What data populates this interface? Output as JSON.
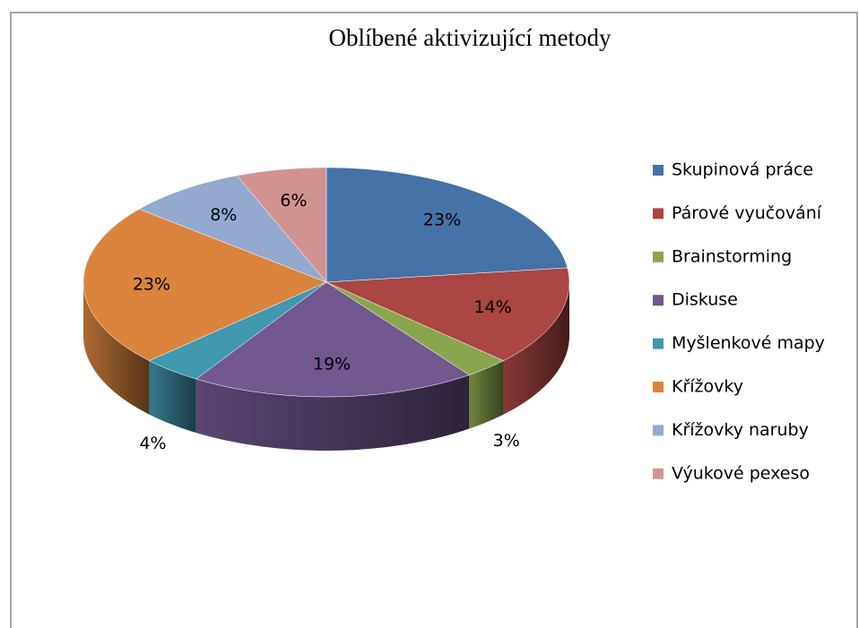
{
  "chart_data": {
    "type": "pie3d",
    "title": "Oblíbené aktivizující metody",
    "categories": [
      "Skupinová práce",
      "Párové vyučování",
      "Brainstorming",
      "Diskuse",
      "Myšlenkové mapy",
      "Křížovky",
      "Křížovky naruby",
      "Výukové pexeso"
    ],
    "values": [
      23,
      14,
      3,
      19,
      4,
      23,
      8,
      6
    ],
    "value_labels": [
      "23%",
      "14%",
      "3%",
      "19%",
      "4%",
      "23%",
      "8%",
      "6%"
    ],
    "colors": [
      "#4572A7",
      "#AA4643",
      "#89A54E",
      "#71588F",
      "#4198AF",
      "#DB843D",
      "#93A9CF",
      "#D19392"
    ],
    "legend": "right"
  }
}
